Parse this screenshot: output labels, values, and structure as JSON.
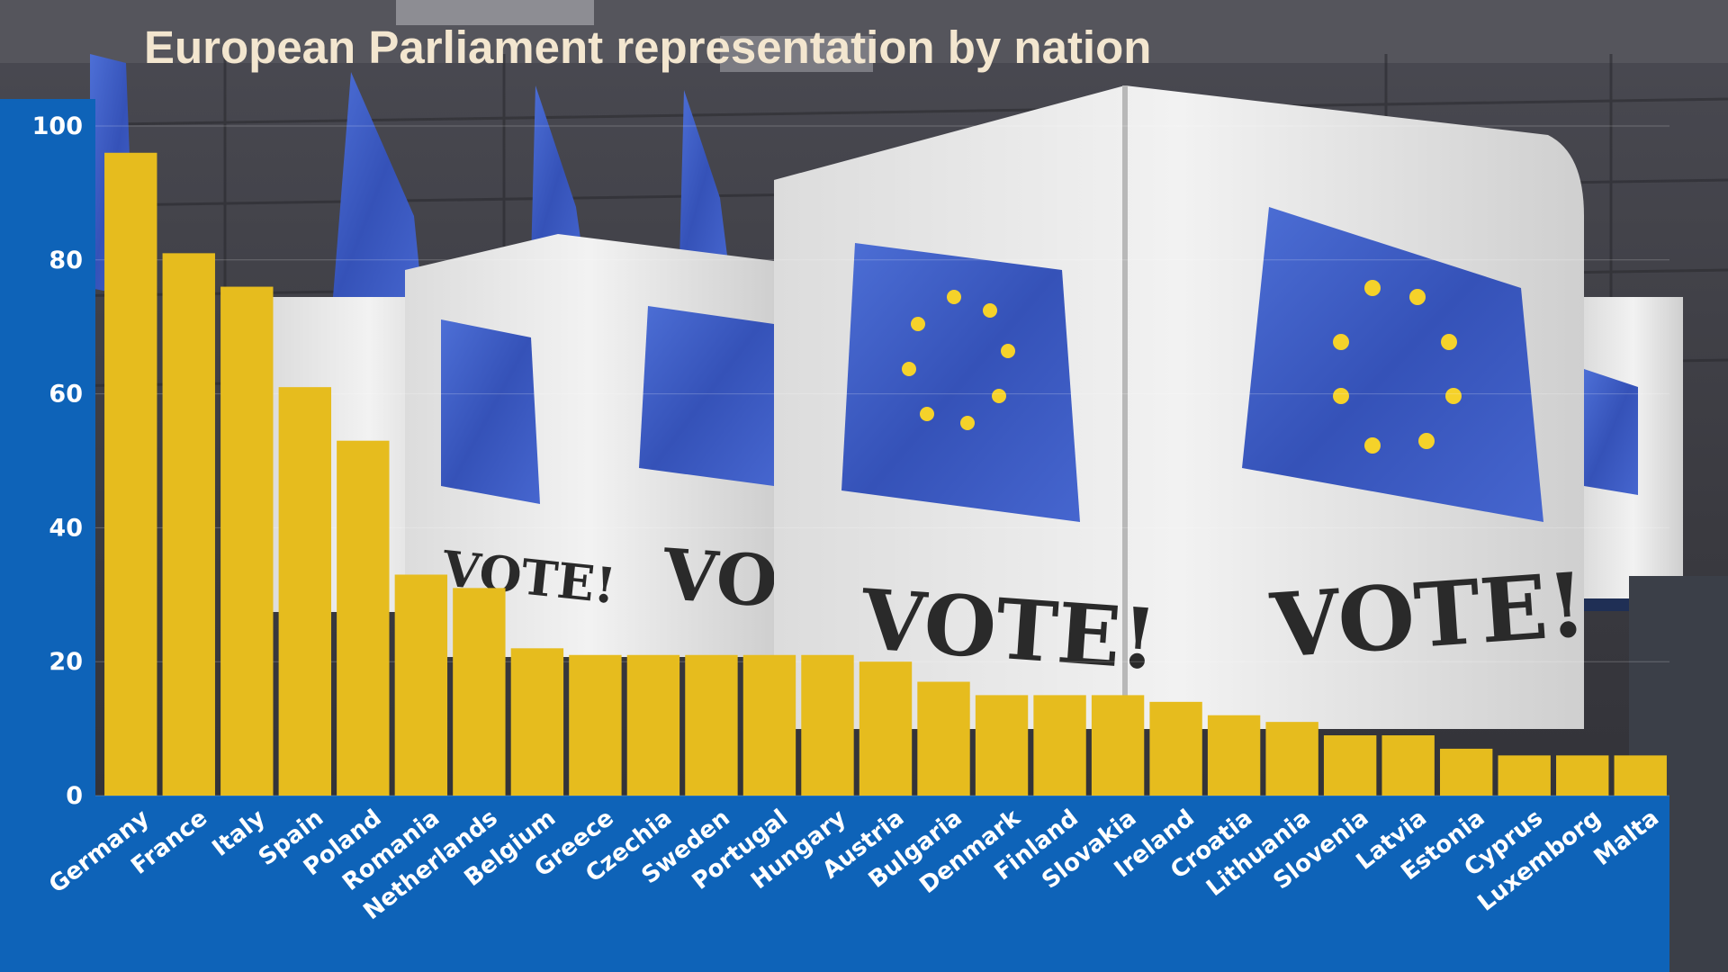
{
  "chart_data": {
    "type": "bar",
    "title": "European Parliament representation by nation",
    "xlabel": "",
    "ylabel": "",
    "ylim": [
      0,
      100
    ],
    "yticks": [
      0,
      20,
      40,
      60,
      80,
      100
    ],
    "grid": true,
    "categories": [
      "Germany",
      "France",
      "Italy",
      "Spain",
      "Poland",
      "Romania",
      "Netherlands",
      "Belgium",
      "Greece",
      "Czechia",
      "Sweden",
      "Portugal",
      "Hungary",
      "Austria",
      "Bulgaria",
      "Denmark",
      "Finland",
      "Slovakia",
      "Ireland",
      "Croatia",
      "Lithuania",
      "Slovenia",
      "Latvia",
      "Estonia",
      "Cyprus",
      "Luxemborg",
      "Malta"
    ],
    "values": [
      96,
      81,
      76,
      61,
      53,
      33,
      31,
      22,
      21,
      21,
      21,
      21,
      21,
      20,
      17,
      15,
      15,
      15,
      14,
      12,
      11,
      9,
      9,
      7,
      6,
      6,
      6
    ]
  },
  "background": {
    "ballot_text": "VOTE!",
    "ballot_text_partial": "VOT"
  },
  "colors": {
    "bar": "#E6BC1E",
    "axis_panel": "#0E63B8",
    "title": "#F3E6CF",
    "tick_text": "#FFFFFF",
    "flag": "#3F5FC8",
    "star": "#F5D22A"
  }
}
